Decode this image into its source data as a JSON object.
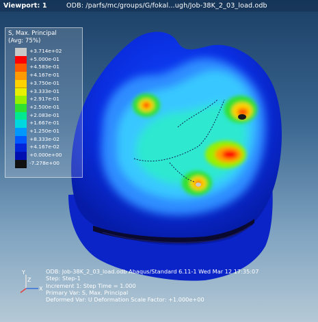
{
  "viewport": {
    "label": "Viewport: 1",
    "odb_title": "ODB: /parfs/mc/groups/G/fokal...ugh/Job-38K_2_03_load.odb"
  },
  "legend": {
    "title_1": "S, Max. Principal",
    "title_2": "(Avg: 75%)",
    "levels": [
      {
        "label": "+3.714e+02",
        "color": "#c8c8c8"
      },
      {
        "label": "+5.000e-01",
        "color": "#ff0000"
      },
      {
        "label": "+4.583e-01",
        "color": "#ff5a00"
      },
      {
        "label": "+4.167e-01",
        "color": "#ff9a00"
      },
      {
        "label": "+3.750e-01",
        "color": "#ffd200"
      },
      {
        "label": "+3.333e-01",
        "color": "#e8f000"
      },
      {
        "label": "+2.917e-01",
        "color": "#98f000"
      },
      {
        "label": "+2.500e-01",
        "color": "#30e030"
      },
      {
        "label": "+2.083e-01",
        "color": "#00e890"
      },
      {
        "label": "+1.667e-01",
        "color": "#00d8e0"
      },
      {
        "label": "+1.250e-01",
        "color": "#0098ff"
      },
      {
        "label": "+8.333e-02",
        "color": "#0058ff"
      },
      {
        "label": "+4.167e-02",
        "color": "#0024d8"
      },
      {
        "label": "+0.000e+00",
        "color": "#0010b0"
      },
      {
        "label": "-7.278e+00",
        "color": "#111111"
      }
    ]
  },
  "triad": {
    "y_axis": "Y",
    "z_axis": "Z",
    "x_axis": "X"
  },
  "info": {
    "line_1": "ODB: Job-38K_2_03_load.odb    Abaqus/Standard 6.11-1    Wed Mar 12 17:35:07",
    "line_2": "Step: Step-1",
    "line_3": "Increment    1: Step Time =    1.000",
    "line_4": "Primary Var: S, Max. Principal",
    "line_5": "Deformed Var: U   Deformation Scale Factor: +1.000e+00"
  }
}
